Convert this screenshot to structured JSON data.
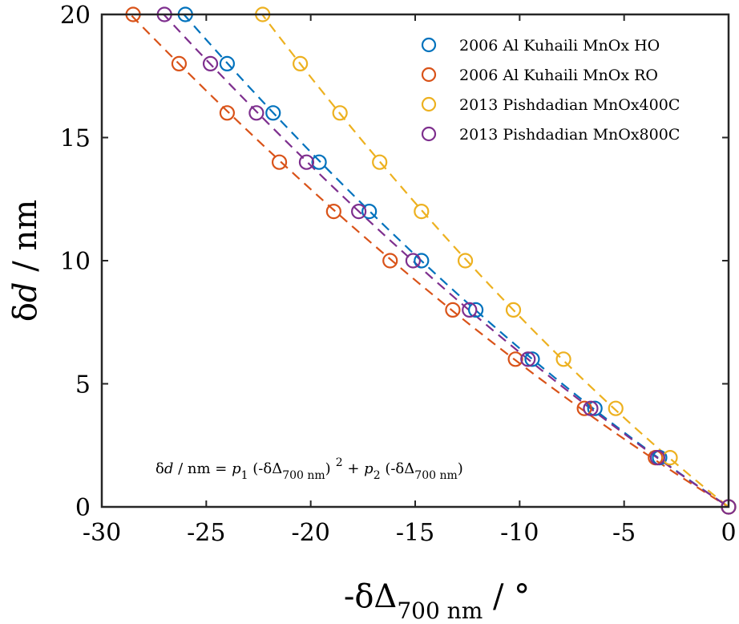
{
  "chart_data": {
    "type": "scatter",
    "xlim": [
      -30,
      0
    ],
    "ylim": [
      0,
      20
    ],
    "xticks": [
      -30,
      -25,
      -20,
      -15,
      -10,
      -5,
      0
    ],
    "yticks": [
      0,
      5,
      10,
      15,
      20
    ],
    "xtick_labels": [
      "-30",
      "-25",
      "-20",
      "-15",
      "-10",
      "-5",
      "0"
    ],
    "ytick_labels": [
      "0",
      "5",
      "10",
      "15",
      "20"
    ],
    "xlabel": {
      "pre": "-δΔ",
      "sub": "700 nm",
      "post": " / °"
    },
    "ylabel": {
      "pre": "δ",
      "it": "d",
      "post": " / nm"
    },
    "grid": false,
    "legend_position": "top-right",
    "annotation": {
      "a": "δ",
      "b": "d",
      "c": " / nm = ",
      "d": "p",
      "e": "1",
      "f": " (-δΔ",
      "g": "700 nm",
      "h": ")",
      "i": "2",
      "j": " + ",
      "k": "p",
      "l": "2",
      "m": " (-δΔ",
      "n": "700 nm",
      "o": ")"
    },
    "series": [
      {
        "name": "2006 Al Kuhaili MnOx HO",
        "color": "#0072BD",
        "x": [
          0,
          -3.3,
          -6.4,
          -9.4,
          -12.1,
          -14.7,
          -17.2,
          -19.6,
          -21.8,
          -24.0,
          -26.0
        ],
        "y": [
          0,
          2,
          4,
          6,
          8,
          10,
          12,
          14,
          16,
          18,
          20
        ]
      },
      {
        "name": "2006 Al Kuhaili MnOx RO",
        "color": "#D95319",
        "x": [
          0,
          -3.5,
          -6.9,
          -10.2,
          -13.2,
          -16.2,
          -18.9,
          -21.5,
          -24.0,
          -26.3,
          -28.5
        ],
        "y": [
          0,
          2,
          4,
          6,
          8,
          10,
          12,
          14,
          16,
          18,
          20
        ]
      },
      {
        "name": "2013 Pishdadian MnOx400C",
        "color": "#EDB120",
        "x": [
          0,
          -2.8,
          -5.4,
          -7.9,
          -10.3,
          -12.6,
          -14.7,
          -16.7,
          -18.6,
          -20.5,
          -22.3
        ],
        "y": [
          0,
          2,
          4,
          6,
          8,
          10,
          12,
          14,
          16,
          18,
          20
        ]
      },
      {
        "name": "2013 Pishdadian MnOx800C",
        "color": "#7E2F8E",
        "x": [
          0,
          -3.4,
          -6.6,
          -9.6,
          -12.4,
          -15.1,
          -17.7,
          -20.2,
          -22.6,
          -24.8,
          -27.0
        ],
        "y": [
          0,
          2,
          4,
          6,
          8,
          10,
          12,
          14,
          16,
          18,
          20
        ]
      }
    ]
  }
}
